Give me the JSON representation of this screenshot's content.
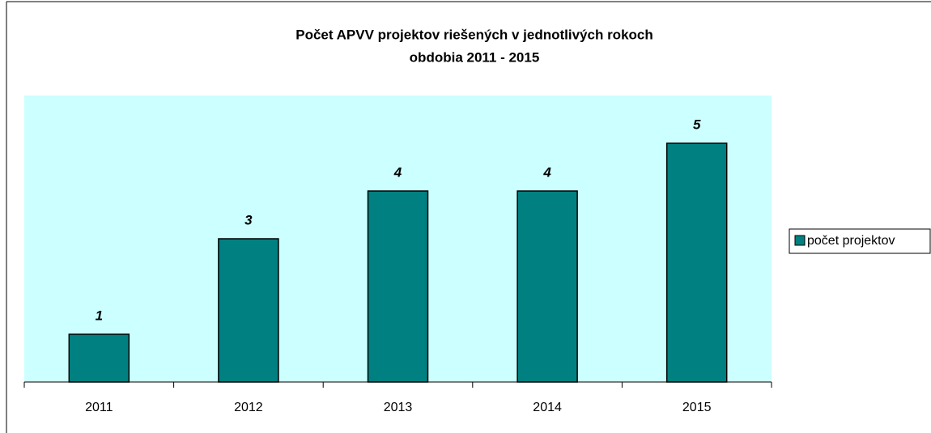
{
  "chart_data": {
    "type": "bar",
    "title": [
      "Počet APVV projektov riešených v jednotlivých rokoch",
      "obdobia  2011 - 2015"
    ],
    "categories": [
      "2011",
      "2012",
      "2013",
      "2014",
      "2015"
    ],
    "series": [
      {
        "name": "počet projektov",
        "color": "#008080",
        "values": [
          1,
          3,
          4,
          4,
          5
        ]
      }
    ],
    "ylim": [
      0,
      6
    ],
    "plot_background": "#ccffff",
    "legend": "right",
    "data_labels": true
  }
}
